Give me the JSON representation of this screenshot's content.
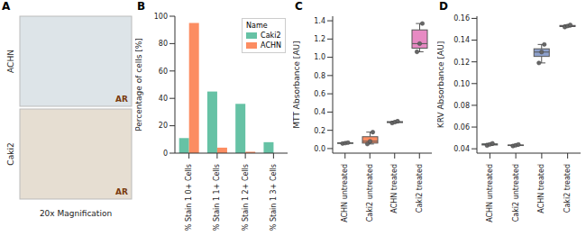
{
  "chart_data": [
    {
      "type": "image",
      "title": "A",
      "rows": [
        "ACHN",
        "Caki2"
      ],
      "stain": "AR",
      "caption": "20x Magnification"
    },
    {
      "type": "bar",
      "title": "B",
      "categories": [
        "% Stain 1 0+ Cells",
        "% Stain 1 1+ Cells",
        "% Stain 1 2+ Cells",
        "% Stain 1 3+ Cells"
      ],
      "series": [
        {
          "name": "Caki2",
          "color": "#66c2a5",
          "values": [
            11,
            45,
            36,
            8
          ]
        },
        {
          "name": "ACHN",
          "color": "#fc8d62",
          "values": [
            95,
            4,
            1,
            0
          ]
        }
      ],
      "legend_title": "Name",
      "legend": "upper right",
      "ylabel": "Percentage of cells [%]",
      "ylim": [
        0,
        100
      ],
      "yticks": [
        0,
        20,
        40,
        60,
        80,
        100
      ]
    },
    {
      "type": "box",
      "title": "C",
      "categories": [
        "ACHN untreated",
        "Caki2 untreated",
        "ACHN treated",
        "Caki2 treated"
      ],
      "colors": [
        "#66c2a5",
        "#fc8d62",
        "#8da0cb",
        "#e78ac3"
      ],
      "boxes": [
        {
          "min": 0.055,
          "q1": 0.058,
          "median": 0.06,
          "q3": 0.062,
          "max": 0.065,
          "points": [
            0.055,
            0.06,
            0.065
          ]
        },
        {
          "min": 0.05,
          "q1": 0.06,
          "median": 0.08,
          "q3": 0.13,
          "max": 0.18,
          "points": [
            0.05,
            0.08,
            0.18
          ]
        },
        {
          "min": 0.28,
          "q1": 0.285,
          "median": 0.29,
          "q3": 0.295,
          "max": 0.3,
          "points": [
            0.28,
            0.29,
            0.3
          ]
        },
        {
          "min": 1.06,
          "q1": 1.1,
          "median": 1.15,
          "q3": 1.3,
          "max": 1.37,
          "points": [
            1.06,
            1.15,
            1.37
          ]
        }
      ],
      "ylabel": "MTT Absorbance [AU]",
      "ylim": [
        -0.05,
        1.45
      ],
      "yticks": [
        {
          "value": 0,
          "label": "0.0"
        },
        0.2,
        0.4,
        0.6,
        0.8,
        {
          "value": 1,
          "label": "1.0"
        },
        1.2,
        1.4
      ]
    },
    {
      "type": "box",
      "title": "D",
      "categories": [
        "ACHN untreated",
        "Caki2 untreated",
        "ACHN treated",
        "Caki2 treated"
      ],
      "colors": [
        "#66c2a5",
        "#fc8d62",
        "#8da0cb",
        "#e78ac3"
      ],
      "boxes": [
        {
          "min": 0.043,
          "q1": 0.0435,
          "median": 0.044,
          "q3": 0.0445,
          "max": 0.045,
          "points": [
            0.043,
            0.044,
            0.045
          ]
        },
        {
          "min": 0.0425,
          "q1": 0.043,
          "median": 0.0432,
          "q3": 0.0435,
          "max": 0.044,
          "points": [
            0.0425,
            0.0432,
            0.044
          ]
        },
        {
          "min": 0.119,
          "q1": 0.125,
          "median": 0.129,
          "q3": 0.132,
          "max": 0.136,
          "points": [
            0.119,
            0.129,
            0.136
          ]
        },
        {
          "min": 0.152,
          "q1": 0.1525,
          "median": 0.153,
          "q3": 0.1535,
          "max": 0.154,
          "points": [
            0.152,
            0.153,
            0.154
          ]
        }
      ],
      "ylabel": "KRV Absorbance [AU]",
      "ylim": [
        0.036,
        0.162
      ],
      "yticks": [
        0.04,
        0.06,
        0.08,
        {
          "value": 0.1,
          "label": "0.10"
        },
        0.12,
        0.14,
        0.16
      ]
    }
  ]
}
